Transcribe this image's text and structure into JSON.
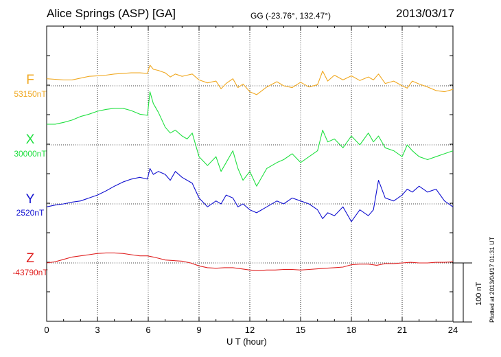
{
  "header": {
    "station": "Alice Springs (ASP)  [GA]",
    "coords": "GG (-23.76°, 132.47°)",
    "date": "2013/03/17"
  },
  "footer": {
    "plotted": "Plotted at 2013/04/17 01:31  UT",
    "scale": "100 nT"
  },
  "chart_data": {
    "type": "line",
    "xlabel": "U T (hour)",
    "xlim": [
      0,
      24
    ],
    "xticks": [
      "0",
      "3",
      "6",
      "9",
      "12",
      "15",
      "18",
      "21",
      "24"
    ],
    "grid": true,
    "scale_bar_nT": 100,
    "series": [
      {
        "name": "F",
        "baseline": "53150nT",
        "color": "#f0a820",
        "x": [
          0,
          0.5,
          1,
          1.5,
          2,
          2.5,
          3,
          3.5,
          4,
          4.5,
          5,
          5.5,
          5.95,
          6.1,
          6.3,
          6.6,
          7.0,
          7.3,
          7.6,
          8.0,
          8.3,
          8.6,
          9.0,
          9.5,
          10.0,
          10.3,
          10.6,
          11.0,
          11.3,
          11.6,
          12.0,
          12.4,
          13.0,
          13.6,
          14.0,
          14.5,
          15.0,
          15.5,
          16.0,
          16.3,
          16.6,
          17.0,
          17.5,
          18.0,
          18.5,
          19.0,
          19.3,
          19.6,
          20.0,
          20.5,
          21.0,
          21.3,
          21.6,
          22.0,
          22.5,
          23.0,
          23.5,
          24.0
        ],
        "y": [
          12,
          11,
          10,
          10,
          13,
          16,
          17,
          18,
          20,
          21,
          22,
          22,
          21,
          35,
          28,
          26,
          22,
          15,
          20,
          16,
          18,
          20,
          10,
          5,
          8,
          -5,
          4,
          12,
          -3,
          3,
          -10,
          -15,
          -2,
          7,
          0,
          -3,
          6,
          -2,
          2,
          25,
          8,
          18,
          10,
          17,
          9,
          15,
          10,
          20,
          4,
          8,
          0,
          -4,
          8,
          3,
          -2,
          -8,
          -10,
          -6
        ]
      },
      {
        "name": "X",
        "baseline": "30000nT",
        "color": "#20e040",
        "x": [
          0,
          0.5,
          1,
          1.5,
          2,
          2.5,
          3,
          3.5,
          4,
          4.5,
          5,
          5.5,
          5.95,
          6.1,
          6.3,
          6.6,
          7.0,
          7.3,
          7.6,
          8.0,
          8.3,
          8.6,
          9.0,
          9.5,
          10.0,
          10.3,
          10.6,
          11.0,
          11.3,
          11.6,
          12.0,
          12.4,
          13.0,
          13.6,
          14.0,
          14.5,
          15.0,
          15.5,
          16.0,
          16.3,
          16.6,
          17.0,
          17.5,
          18.0,
          18.5,
          19.0,
          19.3,
          19.6,
          20.0,
          20.5,
          21.0,
          21.3,
          21.6,
          22.0,
          22.5,
          23.0,
          23.5,
          24.0
        ],
        "y": [
          35,
          35,
          38,
          42,
          48,
          52,
          57,
          60,
          62,
          62,
          58,
          52,
          50,
          90,
          70,
          55,
          30,
          20,
          25,
          15,
          10,
          20,
          -20,
          -35,
          -20,
          -45,
          -30,
          -10,
          -40,
          -60,
          -45,
          -70,
          -40,
          -30,
          -25,
          -15,
          -30,
          -20,
          -10,
          25,
          5,
          10,
          -5,
          15,
          0,
          20,
          5,
          15,
          -5,
          -10,
          -20,
          0,
          -10,
          -20,
          -25,
          -20,
          -15,
          -10
        ]
      },
      {
        "name": "Y",
        "baseline": "2520nT",
        "color": "#1010d0",
        "x": [
          0,
          0.5,
          1,
          1.5,
          2,
          2.5,
          3,
          3.5,
          4,
          4.5,
          5,
          5.5,
          5.95,
          6.1,
          6.3,
          6.6,
          7.0,
          7.3,
          7.6,
          8.0,
          8.3,
          8.6,
          9.0,
          9.5,
          10.0,
          10.3,
          10.6,
          11.0,
          11.3,
          11.6,
          12.0,
          12.4,
          13.0,
          13.6,
          14.0,
          14.5,
          15.0,
          15.5,
          16.0,
          16.3,
          16.6,
          17.0,
          17.5,
          18.0,
          18.5,
          19.0,
          19.3,
          19.6,
          20.0,
          20.5,
          21.0,
          21.3,
          21.6,
          22.0,
          22.5,
          23.0,
          23.5,
          24.0
        ],
        "y": [
          -5,
          -2,
          0,
          3,
          5,
          10,
          15,
          22,
          30,
          37,
          42,
          45,
          42,
          60,
          50,
          55,
          50,
          40,
          55,
          45,
          40,
          35,
          10,
          -5,
          5,
          0,
          15,
          10,
          -5,
          0,
          -10,
          -15,
          -5,
          5,
          0,
          10,
          5,
          0,
          -10,
          -25,
          -15,
          -20,
          -5,
          -30,
          -10,
          -20,
          -10,
          40,
          10,
          5,
          15,
          25,
          20,
          30,
          20,
          25,
          5,
          -5
        ]
      },
      {
        "name": "Z",
        "baseline": "-43790nT",
        "color": "#e02020",
        "x": [
          0,
          0.5,
          1,
          1.5,
          2,
          2.5,
          3,
          3.5,
          4,
          4.5,
          5,
          5.5,
          5.95,
          6.3,
          6.6,
          7.0,
          7.5,
          8.0,
          8.5,
          9.0,
          9.5,
          10.0,
          10.5,
          11.0,
          11.5,
          12.0,
          12.5,
          13.0,
          13.5,
          14.0,
          14.5,
          15.0,
          15.5,
          16.0,
          16.5,
          17.0,
          17.5,
          18.0,
          18.5,
          19.0,
          19.5,
          20.0,
          20.5,
          21.0,
          21.5,
          22.0,
          22.5,
          23.0,
          23.5,
          24.0
        ],
        "y": [
          0,
          2,
          6,
          10,
          12,
          14,
          16,
          17,
          17,
          16,
          14,
          12,
          12,
          10,
          8,
          5,
          4,
          3,
          0,
          -5,
          -8,
          -9,
          -8,
          -8,
          -10,
          -12,
          -13,
          -12,
          -12,
          -11,
          -11,
          -12,
          -11,
          -10,
          -9,
          -8,
          -7,
          -3,
          -2,
          -2,
          -4,
          -1,
          -1,
          0,
          1,
          0,
          0,
          1,
          1,
          2
        ]
      }
    ]
  }
}
